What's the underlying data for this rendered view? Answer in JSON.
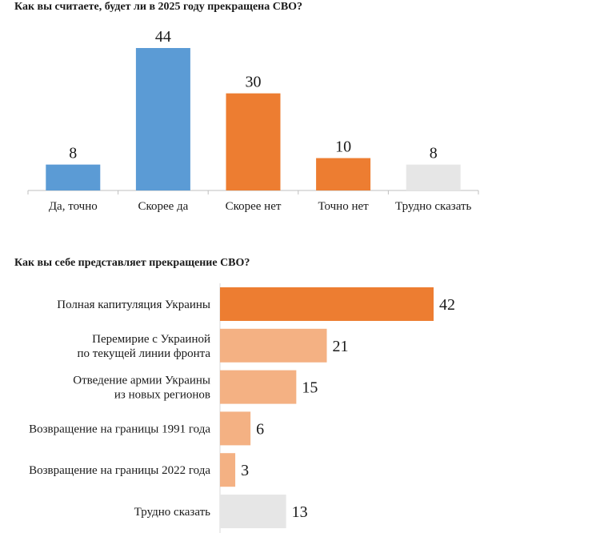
{
  "chart_data": [
    {
      "type": "bar",
      "orientation": "vertical",
      "title": "Как вы считаете, будет ли в 2025 году прекращена СВО?",
      "categories": [
        "Да, точно",
        "Скорее да",
        "Скорее нет",
        "Точно нет",
        "Трудно сказать"
      ],
      "values": [
        8,
        44,
        30,
        10,
        8
      ],
      "colors": [
        "#5b9bd5",
        "#5b9bd5",
        "#ed7d31",
        "#ed7d31",
        "#e6e6e6"
      ],
      "xlabel": "",
      "ylabel": "",
      "ylim": [
        0,
        44
      ]
    },
    {
      "type": "bar",
      "orientation": "horizontal",
      "title": "Как вы себе представляет прекращение СВО?",
      "categories": [
        [
          "Полная капитуляция Украины"
        ],
        [
          "Перемирие с Украиной",
          "по текущей линии фронта"
        ],
        [
          "Отведение армии Украины",
          "из новых регионов"
        ],
        [
          "Возвращение на границы 1991 года"
        ],
        [
          "Возвращение на границы 2022 года"
        ],
        [
          "Трудно сказать"
        ]
      ],
      "values": [
        42,
        21,
        15,
        6,
        3,
        13
      ],
      "colors": [
        "#ed7d31",
        "#f4b183",
        "#f4b183",
        "#f4b183",
        "#f4b183",
        "#e6e6e6"
      ],
      "xlabel": "",
      "ylabel": "",
      "xlim": [
        0,
        42
      ]
    }
  ]
}
